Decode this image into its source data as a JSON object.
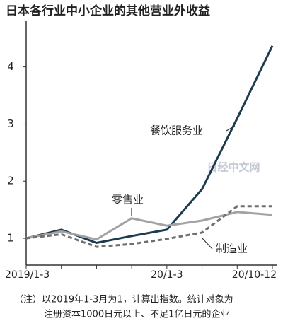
{
  "chart_data": {
    "type": "line",
    "title": "日本各行业中小企业的其他营业外收益",
    "categories": [
      "2019/1-3",
      null,
      null,
      null,
      "20/1-3",
      null,
      null,
      "20/10-12"
    ],
    "series": [
      {
        "name": "餐饮服务业",
        "color": "#1d3b4f",
        "dash": false,
        "values": [
          1.0,
          1.15,
          0.92,
          1.04,
          1.15,
          1.86,
          3.1,
          4.37
        ]
      },
      {
        "name": "零售业",
        "color": "#a3a3a3",
        "dash": false,
        "values": [
          1.0,
          1.12,
          0.98,
          1.35,
          1.22,
          1.31,
          1.46,
          1.41
        ]
      },
      {
        "name": "制造业",
        "color": "#6f6f6f",
        "dash": true,
        "values": [
          1.0,
          1.07,
          0.85,
          0.9,
          0.99,
          1.1,
          1.56,
          1.56
        ]
      }
    ],
    "ylim": [
      0.53,
      4.8
    ],
    "yticks": [
      1,
      2,
      3,
      4
    ],
    "grid": false,
    "watermark": "日经中文网",
    "notes": [
      "（注）以2019年1-3月为1，计算出指数。统计对象为",
      "注册资本1000日元以上、不足1亿日元的企业"
    ]
  }
}
